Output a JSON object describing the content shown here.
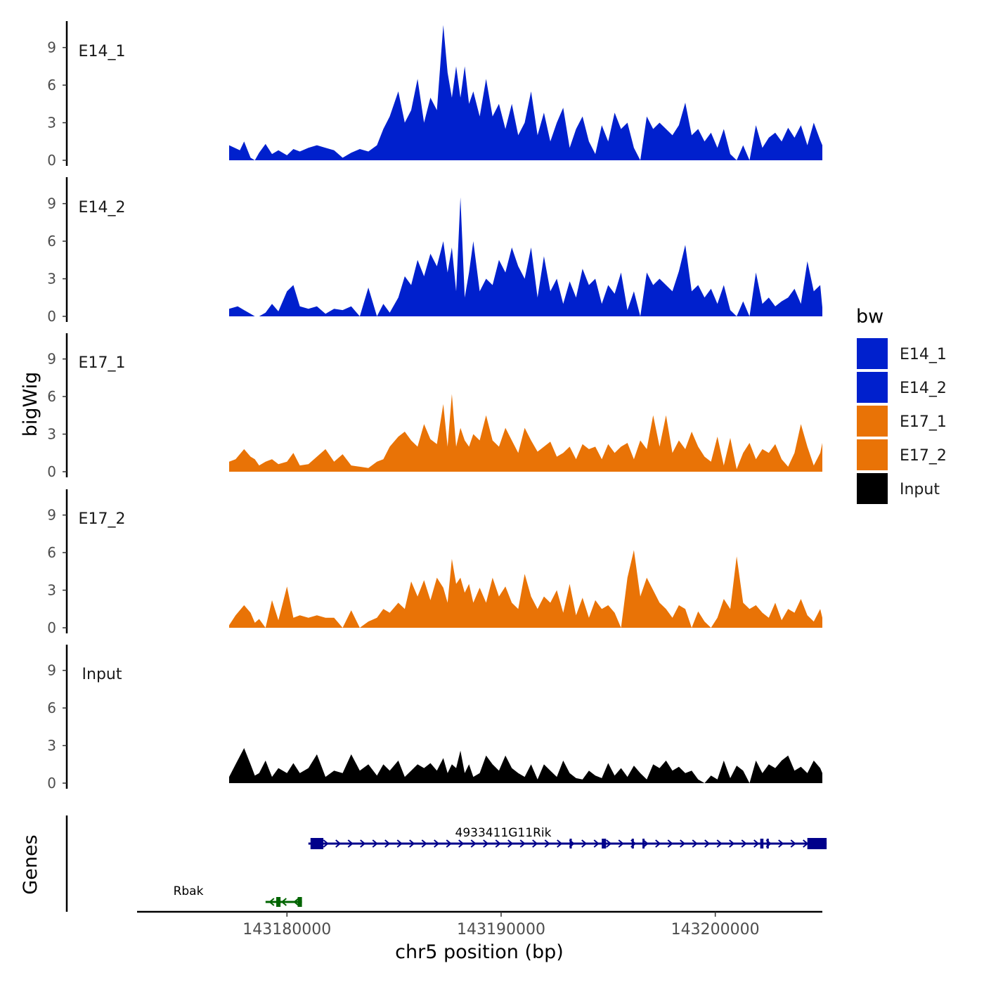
{
  "chart_data": {
    "type": "area",
    "chromosome": "chr5",
    "xlabel": "chr5 position (bp)",
    "ylabel": "bigWig",
    "genes_label": "Genes",
    "xlim": [
      143173000,
      143205000
    ],
    "x_ticks": [
      143180000,
      143190000,
      143200000
    ],
    "x_tick_labels": [
      "143180000",
      "143190000",
      "143200000"
    ],
    "ylim": [
      0,
      11
    ],
    "y_ticks": [
      0,
      3,
      6,
      9
    ],
    "y_tick_labels": [
      "0",
      "3",
      "6",
      "9"
    ],
    "legend": {
      "title": "bw",
      "entries": [
        {
          "label": "E14_1",
          "color": "#0020CD"
        },
        {
          "label": "E14_2",
          "color": "#0020CD"
        },
        {
          "label": "E17_1",
          "color": "#E97306"
        },
        {
          "label": "E17_2",
          "color": "#E97306"
        },
        {
          "label": "Input",
          "color": "#000000"
        }
      ]
    },
    "tracks": [
      {
        "name": "E14_1",
        "color": "#0020CD",
        "x": [
          143177300,
          143177800,
          143178000,
          143178300,
          143178500,
          143178700,
          143179000,
          143179300,
          143179600,
          143180000,
          143180300,
          143180600,
          143181000,
          143181400,
          143181800,
          143182200,
          143182600,
          143183000,
          143183400,
          143183800,
          143184200,
          143184500,
          143184800,
          143185200,
          143185500,
          143185800,
          143186100,
          143186400,
          143186700,
          143187000,
          143187300,
          143187500,
          143187700,
          143187900,
          143188100,
          143188300,
          143188500,
          143188700,
          143189000,
          143189300,
          143189600,
          143189900,
          143190200,
          143190500,
          143190800,
          143191100,
          143191400,
          143191700,
          143192000,
          143192300,
          143192600,
          143192900,
          143193200,
          143193500,
          143193800,
          143194100,
          143194400,
          143194700,
          143195000,
          143195300,
          143195600,
          143195900,
          143196200,
          143196500,
          143196800,
          143197100,
          143197400,
          143197700,
          143198000,
          143198300,
          143198600,
          143198900,
          143199200,
          143199500,
          143199800,
          143200100,
          143200400,
          143200700,
          143201000,
          143201300,
          143201600,
          143201900,
          143202200,
          143202500,
          143202800,
          143203100,
          143203400,
          143203700,
          143204000,
          143204300,
          143204600,
          143204900,
          143205000
        ],
        "values": [
          1.2,
          0.8,
          1.5,
          0.2,
          0.0,
          0.6,
          1.3,
          0.5,
          0.8,
          0.4,
          0.9,
          0.7,
          1.0,
          1.2,
          1.0,
          0.8,
          0.2,
          0.6,
          0.9,
          0.7,
          1.2,
          2.5,
          3.5,
          5.5,
          3.0,
          4.0,
          6.5,
          3.0,
          5.0,
          4.0,
          10.8,
          7.0,
          5.0,
          7.5,
          5.0,
          7.5,
          4.5,
          5.5,
          3.5,
          6.5,
          3.5,
          4.5,
          2.5,
          4.5,
          2.0,
          3.0,
          5.5,
          2.0,
          3.8,
          1.5,
          3.0,
          4.2,
          1.0,
          2.5,
          3.5,
          1.5,
          0.5,
          2.8,
          1.5,
          3.8,
          2.5,
          3.0,
          1.0,
          0.0,
          3.5,
          2.5,
          3.0,
          2.5,
          2.0,
          2.8,
          4.6,
          2.0,
          2.5,
          1.5,
          2.2,
          1.0,
          2.5,
          0.5,
          0.0,
          1.2,
          0.0,
          2.8,
          1.0,
          1.8,
          2.2,
          1.5,
          2.6,
          1.8,
          2.8,
          1.2,
          3.0,
          1.6,
          1.2
        ]
      },
      {
        "name": "E14_2",
        "color": "#0020CD",
        "x": [
          143177300,
          143177700,
          143178000,
          143178300,
          143178500,
          143178700,
          143179000,
          143179300,
          143179600,
          143180000,
          143180300,
          143180600,
          143181000,
          143181400,
          143181800,
          143182200,
          143182600,
          143183000,
          143183400,
          143183800,
          143184200,
          143184500,
          143184800,
          143185200,
          143185500,
          143185800,
          143186100,
          143186400,
          143186700,
          143187000,
          143187300,
          143187500,
          143187700,
          143187900,
          143188100,
          143188300,
          143188500,
          143188700,
          143189000,
          143189300,
          143189600,
          143189900,
          143190200,
          143190500,
          143190800,
          143191100,
          143191400,
          143191700,
          143192000,
          143192300,
          143192600,
          143192900,
          143193200,
          143193500,
          143193800,
          143194100,
          143194400,
          143194700,
          143195000,
          143195300,
          143195600,
          143195900,
          143196200,
          143196500,
          143196800,
          143197100,
          143197400,
          143197700,
          143198000,
          143198300,
          143198600,
          143198900,
          143199200,
          143199500,
          143199800,
          143200100,
          143200400,
          143200700,
          143201000,
          143201300,
          143201600,
          143201900,
          143202200,
          143202500,
          143202800,
          143203100,
          143203400,
          143203700,
          143204000,
          143204300,
          143204600,
          143204900,
          143205000
        ],
        "values": [
          0.6,
          0.8,
          0.5,
          0.2,
          0.0,
          0.0,
          0.3,
          1.0,
          0.4,
          2.0,
          2.5,
          0.8,
          0.6,
          0.8,
          0.2,
          0.6,
          0.5,
          0.8,
          0.0,
          2.3,
          0.0,
          1.0,
          0.3,
          1.5,
          3.2,
          2.5,
          4.5,
          3.2,
          5.0,
          4.0,
          6.0,
          3.5,
          5.5,
          2.0,
          9.5,
          1.5,
          3.5,
          6.0,
          2.0,
          3.0,
          2.5,
          4.5,
          3.5,
          5.5,
          4.0,
          3.0,
          5.5,
          1.5,
          4.8,
          2.0,
          3.0,
          1.0,
          2.8,
          1.5,
          3.8,
          2.5,
          3.0,
          1.0,
          2.5,
          1.8,
          3.5,
          0.5,
          2.0,
          0.0,
          3.5,
          2.5,
          3.0,
          2.5,
          2.0,
          3.6,
          5.7,
          2.0,
          2.5,
          1.5,
          2.2,
          1.0,
          2.5,
          0.5,
          0.0,
          1.2,
          0.0,
          3.5,
          1.0,
          1.5,
          0.8,
          1.2,
          1.5,
          2.2,
          1.0,
          4.4,
          2.0,
          2.5,
          0.7
        ]
      },
      {
        "name": "E17_1",
        "color": "#E97306",
        "x": [
          143177300,
          143177600,
          143178000,
          143178300,
          143178500,
          143178700,
          143179000,
          143179300,
          143179600,
          143180000,
          143180300,
          143180600,
          143181000,
          143181400,
          143181800,
          143182200,
          143182600,
          143183000,
          143183400,
          143183800,
          143184200,
          143184500,
          143184800,
          143185200,
          143185500,
          143185800,
          143186100,
          143186400,
          143186700,
          143187000,
          143187300,
          143187500,
          143187700,
          143187900,
          143188100,
          143188300,
          143188500,
          143188700,
          143189000,
          143189300,
          143189600,
          143189900,
          143190200,
          143190500,
          143190800,
          143191100,
          143191400,
          143191700,
          143192000,
          143192300,
          143192600,
          143192900,
          143193200,
          143193500,
          143193800,
          143194100,
          143194400,
          143194700,
          143195000,
          143195300,
          143195600,
          143195900,
          143196200,
          143196500,
          143196800,
          143197100,
          143197400,
          143197700,
          143198000,
          143198300,
          143198600,
          143198900,
          143199200,
          143199500,
          143199800,
          143200100,
          143200400,
          143200700,
          143201000,
          143201300,
          143201600,
          143201900,
          143202200,
          143202500,
          143202800,
          143203100,
          143203400,
          143203700,
          143204000,
          143204300,
          143204600,
          143204900,
          143205000
        ],
        "values": [
          0.8,
          1.0,
          1.8,
          1.2,
          1.0,
          0.5,
          0.8,
          1.0,
          0.6,
          0.8,
          1.5,
          0.5,
          0.6,
          1.2,
          1.8,
          0.8,
          1.4,
          0.5,
          0.4,
          0.3,
          0.8,
          1.0,
          2.0,
          2.8,
          3.2,
          2.5,
          2.0,
          3.8,
          2.6,
          2.2,
          5.4,
          2.0,
          6.2,
          2.0,
          3.5,
          2.5,
          2.0,
          3.0,
          2.5,
          4.5,
          2.5,
          2.0,
          3.5,
          2.5,
          1.5,
          3.5,
          2.5,
          1.6,
          2.0,
          2.4,
          1.2,
          1.5,
          2.0,
          1.0,
          2.2,
          1.8,
          2.0,
          1.0,
          2.2,
          1.5,
          2.0,
          2.3,
          1.0,
          2.5,
          1.8,
          4.5,
          2.0,
          4.5,
          1.5,
          2.5,
          1.8,
          3.2,
          2.0,
          1.2,
          0.8,
          2.8,
          0.5,
          2.7,
          0.2,
          1.5,
          2.3,
          1.0,
          1.8,
          1.5,
          2.2,
          1.0,
          0.4,
          1.5,
          3.8,
          2.0,
          0.5,
          1.5,
          2.3
        ]
      },
      {
        "name": "E17_2",
        "color": "#E97306",
        "x": [
          143177300,
          143177600,
          143178000,
          143178300,
          143178500,
          143178700,
          143179000,
          143179300,
          143179600,
          143180000,
          143180300,
          143180600,
          143181000,
          143181400,
          143181800,
          143182200,
          143182600,
          143183000,
          143183400,
          143183800,
          143184200,
          143184500,
          143184800,
          143185200,
          143185500,
          143185800,
          143186100,
          143186400,
          143186700,
          143187000,
          143187300,
          143187500,
          143187700,
          143187900,
          143188100,
          143188300,
          143188500,
          143188700,
          143189000,
          143189300,
          143189600,
          143189900,
          143190200,
          143190500,
          143190800,
          143191100,
          143191400,
          143191700,
          143192000,
          143192300,
          143192600,
          143192900,
          143193200,
          143193500,
          143193800,
          143194100,
          143194400,
          143194700,
          143195000,
          143195300,
          143195600,
          143195900,
          143196200,
          143196500,
          143196800,
          143197100,
          143197400,
          143197700,
          143198000,
          143198300,
          143198600,
          143198900,
          143199200,
          143199500,
          143199800,
          143200100,
          143200400,
          143200700,
          143201000,
          143201300,
          143201600,
          143201900,
          143202200,
          143202500,
          143202800,
          143203100,
          143203400,
          143203700,
          143204000,
          143204300,
          143204600,
          143204900,
          143205000
        ],
        "values": [
          0.2,
          1.0,
          1.8,
          1.2,
          0.4,
          0.7,
          0.0,
          2.2,
          0.6,
          3.3,
          0.8,
          1.0,
          0.8,
          1.0,
          0.8,
          0.8,
          0.0,
          1.4,
          0.0,
          0.5,
          0.8,
          1.5,
          1.2,
          2.0,
          1.5,
          3.7,
          2.5,
          3.8,
          2.2,
          4.0,
          3.2,
          2.0,
          5.5,
          3.5,
          4.0,
          2.8,
          3.5,
          2.0,
          3.2,
          2.0,
          4.0,
          2.5,
          3.3,
          2.0,
          1.5,
          4.3,
          2.5,
          1.5,
          2.5,
          2.0,
          3.0,
          1.2,
          3.5,
          1.0,
          2.4,
          0.8,
          2.2,
          1.5,
          1.8,
          1.2,
          0.0,
          4.0,
          6.2,
          2.5,
          4.0,
          3.0,
          2.0,
          1.5,
          0.8,
          1.8,
          1.5,
          0.0,
          1.3,
          0.5,
          0.0,
          0.8,
          2.3,
          1.5,
          5.7,
          2.0,
          1.5,
          1.8,
          1.2,
          0.8,
          2.0,
          0.6,
          1.5,
          1.2,
          2.3,
          1.0,
          0.5,
          1.5,
          0.8
        ]
      },
      {
        "name": "Input",
        "color": "#000000",
        "x": [
          143177300,
          143177600,
          143178000,
          143178300,
          143178500,
          143178700,
          143179000,
          143179300,
          143179600,
          143180000,
          143180300,
          143180600,
          143181000,
          143181400,
          143181800,
          143182200,
          143182600,
          143183000,
          143183400,
          143183800,
          143184200,
          143184500,
          143184800,
          143185200,
          143185500,
          143185800,
          143186100,
          143186400,
          143186700,
          143187000,
          143187300,
          143187500,
          143187700,
          143187900,
          143188100,
          143188300,
          143188500,
          143188700,
          143189000,
          143189300,
          143189600,
          143189900,
          143190200,
          143190500,
          143190800,
          143191100,
          143191400,
          143191700,
          143192000,
          143192300,
          143192600,
          143192900,
          143193200,
          143193500,
          143193800,
          143194100,
          143194400,
          143194700,
          143195000,
          143195300,
          143195600,
          143195900,
          143196200,
          143196500,
          143196800,
          143197100,
          143197400,
          143197700,
          143198000,
          143198300,
          143198600,
          143198900,
          143199200,
          143199500,
          143199800,
          143200100,
          143200400,
          143200700,
          143201000,
          143201300,
          143201600,
          143201900,
          143202200,
          143202500,
          143202800,
          143203100,
          143203400,
          143203700,
          143204000,
          143204300,
          143204600,
          143204900,
          143205000
        ],
        "values": [
          0.5,
          1.5,
          2.8,
          1.5,
          0.6,
          0.8,
          1.8,
          0.5,
          1.2,
          0.8,
          1.6,
          0.8,
          1.2,
          2.3,
          0.5,
          1.0,
          0.8,
          2.3,
          1.0,
          1.5,
          0.6,
          1.5,
          1.0,
          1.8,
          0.5,
          1.0,
          1.5,
          1.2,
          1.6,
          1.0,
          2.0,
          0.8,
          1.5,
          1.2,
          2.6,
          0.8,
          1.5,
          0.5,
          0.8,
          2.2,
          1.5,
          1.0,
          2.2,
          1.2,
          0.8,
          0.5,
          1.5,
          0.3,
          1.5,
          1.0,
          0.5,
          1.8,
          0.8,
          0.4,
          0.3,
          1.0,
          0.6,
          0.4,
          1.6,
          0.6,
          1.2,
          0.5,
          1.4,
          0.8,
          0.3,
          1.5,
          1.2,
          1.8,
          1.0,
          1.3,
          0.8,
          1.0,
          0.3,
          0.0,
          0.6,
          0.3,
          1.8,
          0.4,
          1.4,
          1.0,
          0.0,
          1.8,
          0.8,
          1.5,
          1.2,
          1.8,
          2.2,
          1.0,
          1.3,
          0.8,
          1.8,
          1.2,
          0.8
        ]
      }
    ],
    "genes": [
      {
        "name": "4933411G11Rik",
        "strand": "+",
        "color": "#00008B",
        "start": 143181000,
        "end": 143205200,
        "exons": [
          [
            143181100,
            143181700
          ],
          [
            143193200,
            143193300
          ],
          [
            143194700,
            143194900
          ],
          [
            143196100,
            143196150
          ],
          [
            143196600,
            143196650
          ],
          [
            143202100,
            143202250
          ],
          [
            143202400,
            143202500
          ],
          [
            143204300,
            143205200
          ]
        ]
      },
      {
        "name": "Rbak",
        "strand": "-",
        "color": "#006400",
        "start": 143179000,
        "end": 143180700,
        "exons": [
          [
            143179500,
            143179700
          ],
          [
            143180500,
            143180700
          ]
        ]
      }
    ]
  }
}
